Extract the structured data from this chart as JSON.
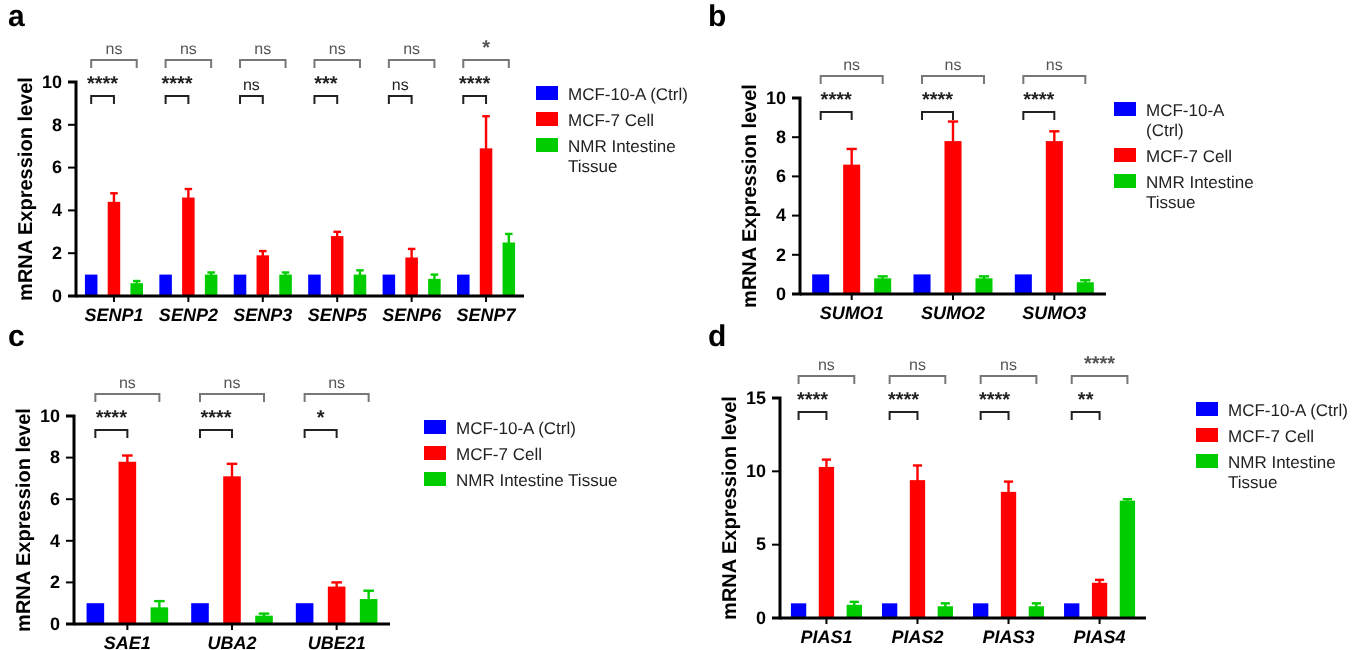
{
  "chart_data": [
    {
      "type": "bar",
      "title": "a",
      "ylabel": "mRNA Expression level",
      "categories": [
        "SENP1",
        "SENP2",
        "SENP3",
        "SENP5",
        "SENP6",
        "SENP7"
      ],
      "ylim": [
        0,
        10
      ],
      "yticks": [
        0,
        2,
        4,
        6,
        8,
        10
      ],
      "legend": "right",
      "series": [
        {
          "name": "MCF-10-A (Ctrl)",
          "color": "#0000ff",
          "values": [
            1,
            1,
            1,
            1,
            1,
            1
          ]
        },
        {
          "name": "MCF-7 Cell",
          "color": "#ff0000",
          "values": [
            4.4,
            4.6,
            1.9,
            2.8,
            1.8,
            6.9
          ],
          "errors": [
            0.4,
            0.4,
            0.2,
            0.2,
            0.4,
            1.5
          ]
        },
        {
          "name": "NMR Intestine Tissue",
          "color": "#00cc00",
          "values": [
            0.6,
            1.0,
            1.0,
            1.0,
            0.8,
            2.5
          ],
          "errors": [
            0.1,
            0.1,
            0.1,
            0.2,
            0.2,
            0.4
          ]
        }
      ],
      "annotations": [
        "ns",
        "****",
        "ns",
        "****",
        "ns",
        "ns",
        "ns",
        "***",
        "ns",
        "ns",
        "*",
        "****"
      ]
    },
    {
      "type": "bar",
      "title": "b",
      "ylabel": "mRNA Expression level",
      "categories": [
        "SUMO1",
        "SUMO2",
        "SUMO3"
      ],
      "ylim": [
        0,
        10
      ],
      "yticks": [
        0,
        2,
        4,
        6,
        8,
        10
      ],
      "legend": "right",
      "series": [
        {
          "name": "MCF-10-A (Ctrl)",
          "color": "#0000ff",
          "values": [
            1,
            1,
            1
          ]
        },
        {
          "name": "MCF-7 Cell",
          "color": "#ff0000",
          "values": [
            6.6,
            7.8,
            7.8
          ],
          "errors": [
            0.8,
            1.0,
            0.5
          ]
        },
        {
          "name": "NMR Intestine Tissue",
          "color": "#00cc00",
          "values": [
            0.8,
            0.8,
            0.6
          ],
          "errors": [
            0.1,
            0.1,
            0.1
          ]
        }
      ],
      "annotations": [
        "ns",
        "****",
        "ns",
        "****",
        "ns",
        "****"
      ]
    },
    {
      "type": "bar",
      "title": "c",
      "ylabel": "mRNA Expression level",
      "categories": [
        "SAE1",
        "UBA2",
        "UBE21"
      ],
      "ylim": [
        0,
        10
      ],
      "yticks": [
        0,
        2,
        4,
        6,
        8,
        10
      ],
      "legend": "right",
      "series": [
        {
          "name": "MCF-10-A (Ctrl)",
          "color": "#0000ff",
          "values": [
            1,
            1,
            1
          ]
        },
        {
          "name": "MCF-7 Cell",
          "color": "#ff0000",
          "values": [
            7.8,
            7.1,
            1.8
          ],
          "errors": [
            0.3,
            0.6,
            0.2
          ]
        },
        {
          "name": "NMR Intestine Tissue",
          "color": "#00cc00",
          "values": [
            0.8,
            0.4,
            1.2
          ],
          "errors": [
            0.3,
            0.1,
            0.4
          ]
        }
      ],
      "annotations": [
        "ns",
        "****",
        "ns",
        "****",
        "ns",
        "*"
      ]
    },
    {
      "type": "bar",
      "title": "d",
      "ylabel": "mRNA Expression level",
      "categories": [
        "PIAS1",
        "PIAS2",
        "PIAS3",
        "PIAS4"
      ],
      "ylim": [
        0,
        15
      ],
      "yticks": [
        0,
        5,
        10,
        15
      ],
      "legend": "right",
      "series": [
        {
          "name": "MCF-10-A (Ctrl)",
          "color": "#0000ff",
          "values": [
            1,
            1,
            1,
            1
          ]
        },
        {
          "name": "MCF-7 Cell",
          "color": "#ff0000",
          "values": [
            10.3,
            9.4,
            8.6,
            2.4
          ],
          "errors": [
            0.5,
            1.0,
            0.7,
            0.2
          ]
        },
        {
          "name": "NMR Intestine Tissue",
          "color": "#00cc00",
          "values": [
            0.9,
            0.8,
            0.8,
            8.0
          ],
          "errors": [
            0.2,
            0.2,
            0.2,
            0.1
          ]
        }
      ],
      "annotations": [
        "ns",
        "****",
        "ns",
        "****",
        "ns",
        "****",
        "****",
        "**"
      ]
    }
  ]
}
